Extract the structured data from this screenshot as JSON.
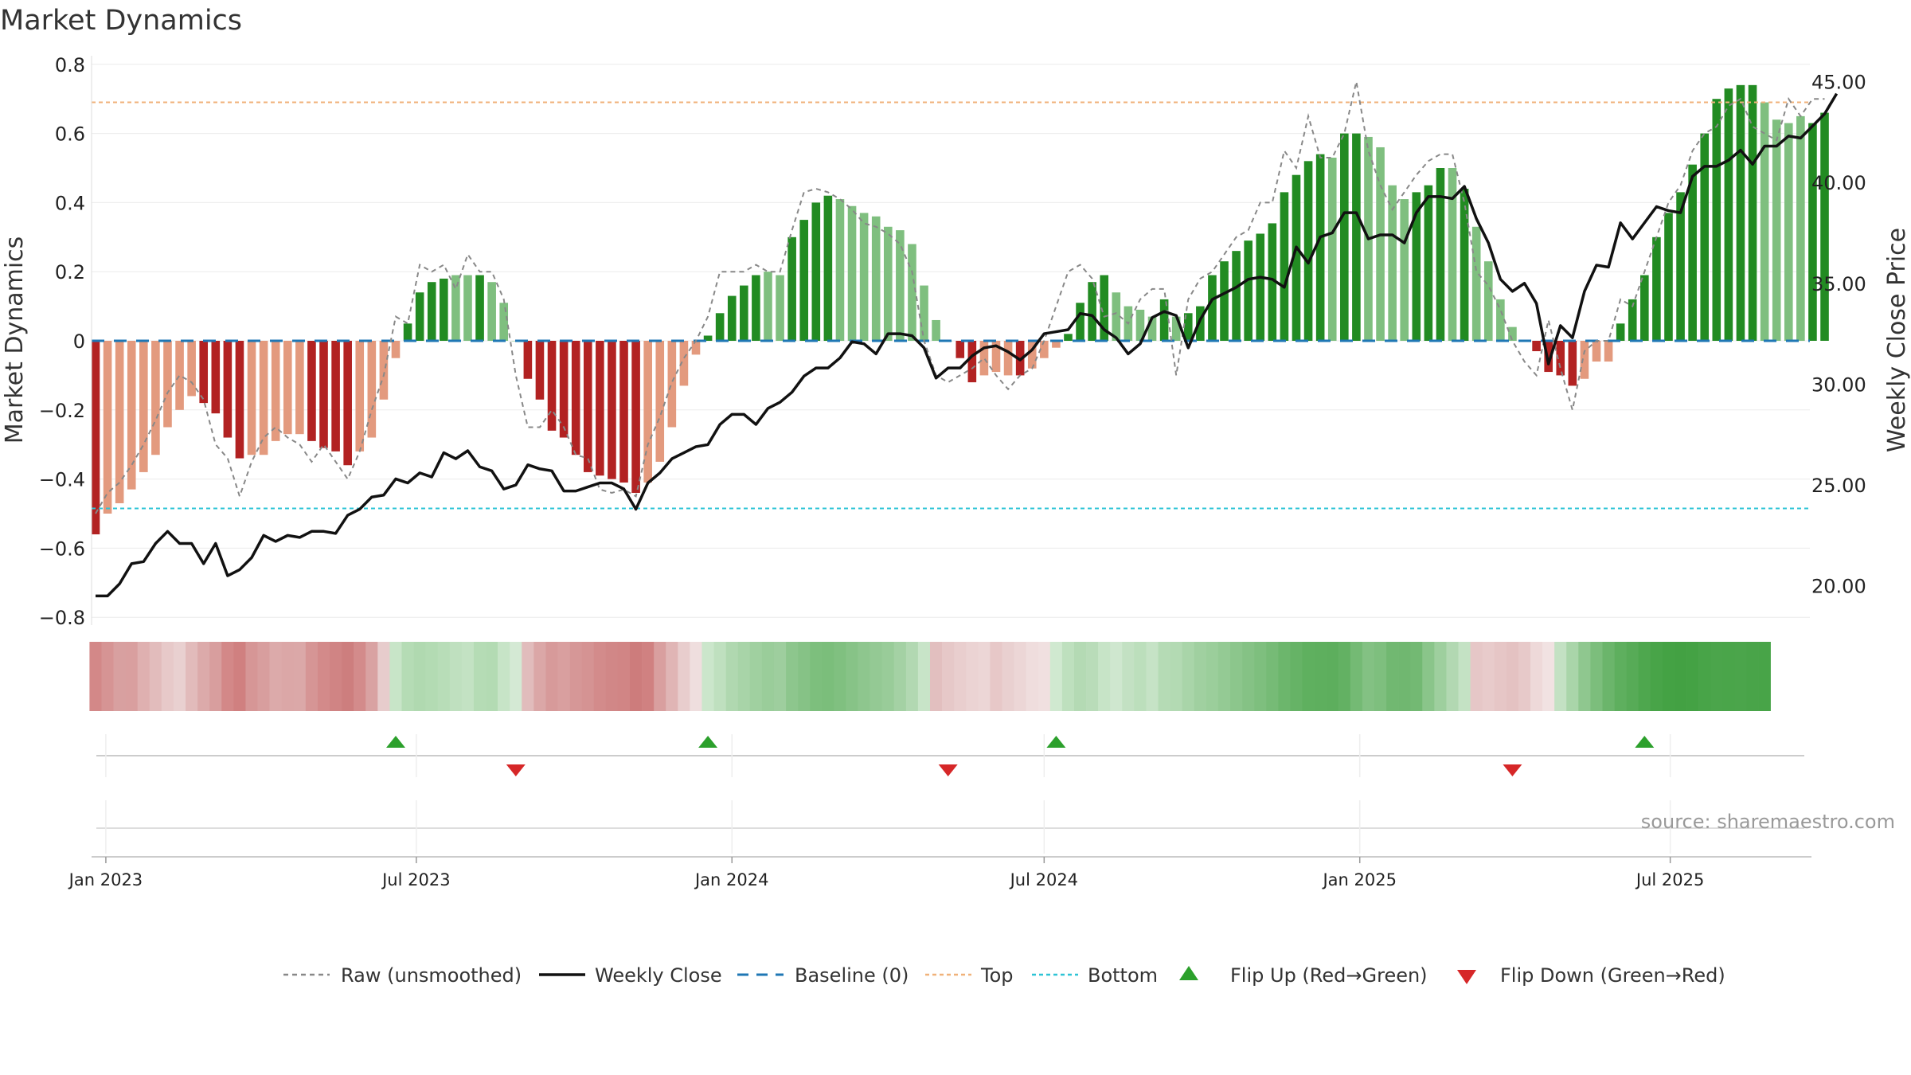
{
  "title": "Market Dynamics",
  "source_text": "source: sharemaestro.com",
  "colors": {
    "dark_green": "#228b22",
    "light_green": "#7fbf7f",
    "dark_red": "#b22222",
    "light_red": "#e39a7e",
    "top_line": "#f0b27a",
    "bottom_line": "#2ec4d6",
    "baseline": "#1f77b4",
    "close_line": "#111111",
    "raw_line": "#888888",
    "flip_up": "#2ca02c",
    "flip_down": "#d62728"
  },
  "chart_data": {
    "type": "bar",
    "title": "Market Dynamics",
    "ylabel": "Market Dynamics",
    "y2label": "Weekly Close Price",
    "ylim": [
      -0.8,
      0.8
    ],
    "y2lim": [
      17.0,
      47.0
    ],
    "yticks": [
      "0.8",
      "0.6",
      "0.4",
      "0.2",
      "0",
      "−0.2",
      "−0.4",
      "−0.6",
      "−0.8"
    ],
    "y2ticks": [
      "45.00",
      "40.00",
      "35.00",
      "30.00",
      "25.00",
      "20.00"
    ],
    "xticks": [
      "Jan 2023",
      "Jul 2023",
      "Jan 2024",
      "Jul 2024",
      "Jan 2025",
      "Jul 2025"
    ],
    "top_level": 0.69,
    "bottom_level": -0.485,
    "baseline": 0,
    "start_date": "2022-12-26",
    "period": "weekly",
    "series": [
      {
        "name": "Market Dynamics",
        "values": [
          -0.56,
          -0.5,
          -0.47,
          -0.43,
          -0.38,
          -0.33,
          -0.25,
          -0.2,
          -0.16,
          -0.18,
          -0.21,
          -0.28,
          -0.34,
          -0.33,
          -0.33,
          -0.29,
          -0.27,
          -0.27,
          -0.29,
          -0.31,
          -0.32,
          -0.36,
          -0.32,
          -0.28,
          -0.17,
          -0.05,
          0.05,
          0.14,
          0.17,
          0.18,
          0.19,
          0.19,
          0.19,
          0.17,
          0.11,
          0.0,
          -0.11,
          -0.17,
          -0.26,
          -0.28,
          -0.33,
          -0.38,
          -0.39,
          -0.4,
          -0.41,
          -0.44,
          -0.41,
          -0.35,
          -0.25,
          -0.13,
          -0.04,
          0.015,
          0.08,
          0.13,
          0.16,
          0.19,
          0.2,
          0.19,
          0.3,
          0.35,
          0.4,
          0.42,
          0.41,
          0.39,
          0.37,
          0.36,
          0.33,
          0.32,
          0.28,
          0.16,
          0.06,
          0.0,
          -0.05,
          -0.12,
          -0.1,
          -0.09,
          -0.1,
          -0.1,
          -0.08,
          -0.05,
          -0.02,
          0.02,
          0.11,
          0.17,
          0.19,
          0.14,
          0.1,
          0.09,
          0.07,
          0.12,
          0.07,
          0.08,
          0.1,
          0.19,
          0.23,
          0.26,
          0.29,
          0.31,
          0.34,
          0.43,
          0.48,
          0.52,
          0.54,
          0.53,
          0.6,
          0.6,
          0.59,
          0.56,
          0.45,
          0.41,
          0.43,
          0.45,
          0.5,
          0.5,
          0.44,
          0.33,
          0.23,
          0.12,
          0.04,
          0.0,
          -0.03,
          -0.09,
          -0.1,
          -0.13,
          -0.11,
          -0.06,
          -0.06,
          0.05,
          0.12,
          0.19,
          0.3,
          0.37,
          0.43,
          0.51,
          0.6,
          0.7,
          0.73,
          0.74,
          0.74,
          0.69,
          0.64,
          0.63,
          0.65,
          0.63,
          0.66
        ],
        "colors": [
          "dr",
          "lr",
          "lr",
          "lr",
          "lr",
          "lr",
          "lr",
          "lr",
          "lr",
          "dr",
          "dr",
          "dr",
          "dr",
          "lr",
          "lr",
          "lr",
          "lr",
          "lr",
          "dr",
          "dr",
          "dr",
          "dr",
          "lr",
          "lr",
          "lr",
          "lr",
          "dg",
          "dg",
          "dg",
          "dg",
          "lg",
          "lg",
          "dg",
          "lg",
          "lg",
          "lg",
          "dr",
          "dr",
          "dr",
          "dr",
          "dr",
          "dr",
          "dr",
          "dr",
          "dr",
          "dr",
          "lr",
          "lr",
          "lr",
          "lr",
          "lr",
          "dg",
          "dg",
          "dg",
          "dg",
          "dg",
          "lg",
          "lg",
          "dg",
          "dg",
          "dg",
          "dg",
          "lg",
          "lg",
          "lg",
          "lg",
          "lg",
          "lg",
          "lg",
          "lg",
          "lg",
          "lg",
          "dr",
          "dr",
          "lr",
          "lr",
          "lr",
          "dr",
          "lr",
          "lr",
          "lr",
          "dg",
          "dg",
          "dg",
          "dg",
          "lg",
          "lg",
          "lg",
          "lg",
          "dg",
          "lg",
          "dg",
          "dg",
          "dg",
          "dg",
          "dg",
          "dg",
          "dg",
          "dg",
          "dg",
          "dg",
          "dg",
          "dg",
          "lg",
          "dg",
          "dg",
          "lg",
          "lg",
          "lg",
          "lg",
          "dg",
          "dg",
          "dg",
          "lg",
          "dg",
          "lg",
          "lg",
          "lg",
          "lg",
          "lg",
          "dr",
          "dr",
          "dr",
          "dr",
          "lr",
          "lr",
          "lr",
          "dg",
          "dg",
          "dg",
          "dg",
          "dg",
          "dg",
          "dg",
          "dg",
          "dg",
          "dg",
          "dg",
          "dg",
          "lg",
          "lg",
          "lg",
          "lg",
          "dg",
          "dg"
        ]
      },
      {
        "name": "Raw (unsmoothed)",
        "values": [
          -0.5,
          -0.44,
          -0.41,
          -0.36,
          -0.3,
          -0.23,
          -0.15,
          -0.1,
          -0.12,
          -0.17,
          -0.3,
          -0.34,
          -0.45,
          -0.35,
          -0.28,
          -0.25,
          -0.28,
          -0.3,
          -0.35,
          -0.3,
          -0.35,
          -0.4,
          -0.32,
          -0.2,
          -0.1,
          0.07,
          0.05,
          0.22,
          0.2,
          0.22,
          0.15,
          0.25,
          0.2,
          0.2,
          0.12,
          -0.1,
          -0.25,
          -0.25,
          -0.2,
          -0.25,
          -0.33,
          -0.34,
          -0.43,
          -0.44,
          -0.43,
          -0.45,
          -0.3,
          -0.22,
          -0.12,
          -0.05,
          0.0,
          0.07,
          0.2,
          0.2,
          0.2,
          0.22,
          0.2,
          0.2,
          0.32,
          0.43,
          0.44,
          0.43,
          0.41,
          0.38,
          0.34,
          0.33,
          0.31,
          0.28,
          0.2,
          0.0,
          -0.1,
          -0.12,
          -0.1,
          -0.08,
          -0.05,
          -0.1,
          -0.14,
          -0.1,
          -0.08,
          0.0,
          0.1,
          0.2,
          0.22,
          0.18,
          0.07,
          0.08,
          0.05,
          0.12,
          0.15,
          0.15,
          -0.1,
          0.12,
          0.18,
          0.2,
          0.25,
          0.3,
          0.32,
          0.4,
          0.4,
          0.55,
          0.5,
          0.65,
          0.53,
          0.53,
          0.6,
          0.75,
          0.55,
          0.45,
          0.38,
          0.43,
          0.48,
          0.52,
          0.54,
          0.54,
          0.4,
          0.2,
          0.16,
          0.09,
          0.0,
          -0.06,
          -0.1,
          0.06,
          -0.08,
          -0.2,
          -0.03,
          0.0,
          0.0,
          0.12,
          0.1,
          0.2,
          0.3,
          0.4,
          0.45,
          0.55,
          0.6,
          0.62,
          0.68,
          0.7,
          0.62,
          0.6,
          0.58,
          0.7,
          0.65,
          0.7,
          0.7
        ]
      },
      {
        "name": "Weekly Close",
        "values": [
          19.5,
          19.5,
          20.1,
          21.1,
          21.2,
          22.1,
          22.7,
          22.1,
          22.1,
          21.1,
          22.1,
          20.5,
          20.8,
          21.4,
          22.5,
          22.2,
          22.5,
          22.4,
          22.7,
          22.7,
          22.6,
          23.5,
          23.8,
          24.4,
          24.5,
          25.3,
          25.1,
          25.6,
          25.4,
          26.6,
          26.3,
          26.7,
          25.9,
          25.7,
          24.8,
          25.0,
          26.0,
          25.8,
          25.7,
          24.7,
          24.7,
          24.9,
          25.1,
          25.1,
          24.8,
          23.8,
          25.1,
          25.6,
          26.3,
          26.6,
          26.9,
          27.0,
          28.0,
          28.5,
          28.5,
          28.0,
          28.8,
          29.1,
          29.6,
          30.4,
          30.8,
          30.8,
          31.3,
          32.1,
          32.0,
          31.5,
          32.5,
          32.5,
          32.4,
          31.8,
          30.3,
          30.8,
          30.8,
          31.4,
          31.8,
          31.9,
          31.6,
          31.2,
          31.7,
          32.5,
          32.6,
          32.7,
          33.5,
          33.4,
          32.7,
          32.3,
          31.5,
          32.0,
          33.3,
          33.6,
          33.4,
          31.8,
          33.2,
          34.2,
          34.5,
          34.8,
          35.2,
          35.3,
          35.2,
          34.8,
          36.8,
          36.0,
          37.3,
          37.5,
          38.5,
          38.5,
          37.2,
          37.4,
          37.4,
          37.0,
          38.5,
          39.3,
          39.3,
          39.2,
          39.8,
          38.2,
          37.0,
          35.2,
          34.6,
          35.0,
          34.0,
          31.0,
          32.9,
          32.3,
          34.6,
          35.9,
          35.8,
          38.0,
          37.2,
          38.0,
          38.8,
          38.6,
          38.5,
          40.3,
          40.8,
          40.8,
          41.1,
          41.6,
          40.9,
          41.8,
          41.8,
          42.3,
          42.2,
          42.8,
          43.4,
          44.4
        ]
      }
    ],
    "strip_colors": [
      "#d38888",
      "#d69494",
      "#d8a0a0",
      "#d99f9f",
      "#dfb0b0",
      "#e2bcbc",
      "#e7c9c9",
      "#e9d0d0",
      "#e2bbbb",
      "#dcaaaa",
      "#d89e9e",
      "#d38888",
      "#d08080",
      "#d69696",
      "#d89e9e",
      "#dcaaaa",
      "#dba7a7",
      "#dba8a8",
      "#d69595",
      "#d38a8a",
      "#d08484",
      "#cd7e7e",
      "#d38b8b",
      "#d9a2a2",
      "#e7cccc",
      "#c8e5c8",
      "#b5dcb5",
      "#b0d9b0",
      "#b3dbb3",
      "#b8ddb8",
      "#bfe0bf",
      "#c3e2c3",
      "#b5dcb5",
      "#b3dbb3",
      "#c7e4c7",
      "#d4e9d4",
      "#e1bcbc",
      "#dba7a7",
      "#d79a9a",
      "#d99f9f",
      "#d69797",
      "#d59393",
      "#d38b8b",
      "#d18787",
      "#d18585",
      "#cd7c7c",
      "#d08181",
      "#d99f9f",
      "#e0b5b5",
      "#e8cdcd",
      "#efdede",
      "#cbe6cb",
      "#bfe0bf",
      "#b0d8b0",
      "#a8d4a8",
      "#a0d0a0",
      "#9acd9a",
      "#9ece9e",
      "#8dc68d",
      "#86c286",
      "#7dbf7d",
      "#7bbe7b",
      "#80c080",
      "#87c387",
      "#8ec68e",
      "#94c994",
      "#99cc99",
      "#a4d1a4",
      "#b2d8b2",
      "#c8e4c8",
      "#e2bfbf",
      "#e6c8c8",
      "#e9cece",
      "#ebd3d3",
      "#ecd6d6",
      "#e7c8c8",
      "#e9d0d0",
      "#ecd6d6",
      "#efdddd",
      "#f0e0e0",
      "#d0e9d0",
      "#bee0be",
      "#b4dab4",
      "#b9dcb9",
      "#c7e4c7",
      "#cfe7cf",
      "#c3e1c3",
      "#bcdfbc",
      "#c6e3c6",
      "#b5dbb5",
      "#b3dab3",
      "#a9d5a9",
      "#a0d0a0",
      "#9bce9b",
      "#94ca94",
      "#8cc68c",
      "#85c285",
      "#7ebf7e",
      "#76bb76",
      "#6cb66c",
      "#66b366",
      "#5fb05f",
      "#5eaf5e",
      "#5dae5d",
      "#63b163",
      "#74ba74",
      "#83c183",
      "#7ebf7e",
      "#71b871",
      "#70b770",
      "#73b973",
      "#8ac58a",
      "#9ecf9e",
      "#b2d8b2",
      "#c4e2c4",
      "#e6c7c7",
      "#e8cbcb",
      "#e6c6c6",
      "#e4c2c2",
      "#e7c9c9",
      "#eed9d9",
      "#f1e2e2",
      "#c3e1c3",
      "#a9d5a9",
      "#8fc78f",
      "#7cbe7c",
      "#6bb56b",
      "#5eaf5e",
      "#57ab57",
      "#4ea74e",
      "#48a448",
      "#44a244",
      "#43a143",
      "#44a244",
      "#48a448",
      "#4ba54b",
      "#4aa54a",
      "#4ba54b",
      "#49a449",
      "#48a448"
    ],
    "flip_up_weeks": [
      25,
      51,
      80,
      129
    ],
    "flip_down_weeks": [
      35,
      71,
      118
    ]
  },
  "legend": {
    "raw": "Raw (unsmoothed)",
    "close": "Weekly Close",
    "baseline": "Baseline (0)",
    "top": "Top",
    "bottom": "Bottom",
    "flip_up": "Flip Up (Red→Green)",
    "flip_down": "Flip Down (Green→Red)"
  }
}
